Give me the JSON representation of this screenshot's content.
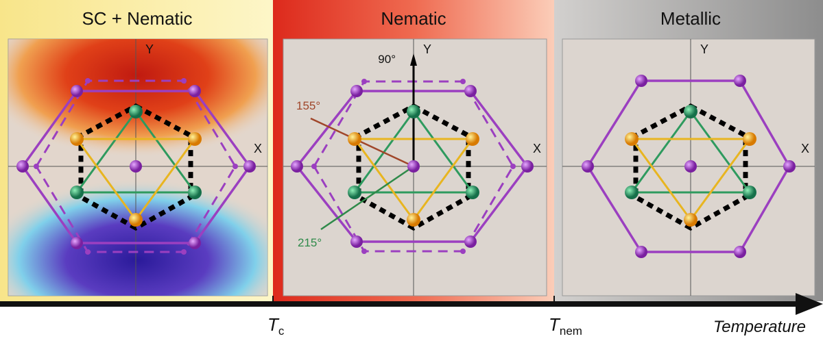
{
  "panels": [
    {
      "title": "SC + Nematic",
      "x_label": "X",
      "y_label": "Y"
    },
    {
      "title": "Nematic",
      "x_label": "X",
      "y_label": "Y",
      "angles": {
        "a90": "90°",
        "a155": "155°",
        "a215": "215°"
      }
    },
    {
      "title": "Metallic",
      "x_label": "X",
      "y_label": "Y"
    }
  ],
  "axis": {
    "tc": "T",
    "tc_sub": "c",
    "tnem": "T",
    "tnem_sub": "nem",
    "label": "Temperature"
  },
  "colors": {
    "purple": "#9b3fc0",
    "green": "#2e9a5e",
    "yellow": "#e8b520",
    "brown": "#a0462a",
    "angle_green": "#2f8a4a"
  }
}
